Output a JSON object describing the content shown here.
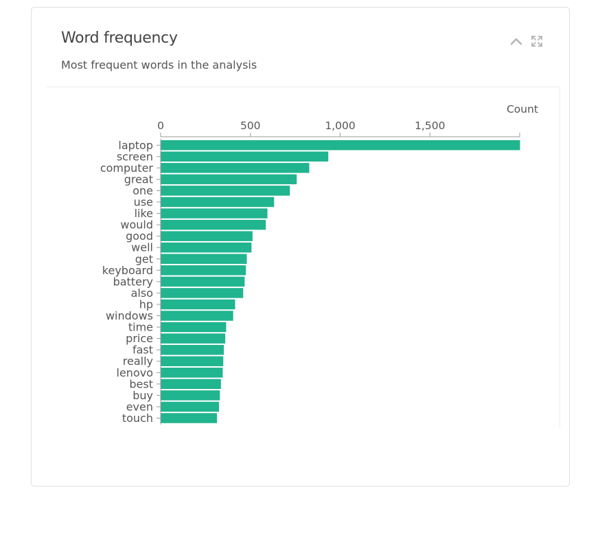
{
  "card": {
    "title": "Word frequency",
    "subtitle": "Most frequent words in the analysis"
  },
  "toolbar": {
    "collapse_icon": "chevron-up-icon",
    "expand_icon": "expand-icon"
  },
  "colors": {
    "bar": "#20b48f",
    "axis": "#999999",
    "text": "#555555"
  },
  "chart_data": {
    "type": "bar",
    "orientation": "horizontal",
    "title": "",
    "xlabel": "Count",
    "ylabel": "",
    "xlim": [
      0,
      2000
    ],
    "xticks": [
      0,
      500,
      1000,
      1500
    ],
    "xtick_labels": [
      "0",
      "500",
      "1,000",
      "1,500"
    ],
    "grid": false,
    "categories": [
      "laptop",
      "screen",
      "computer",
      "great",
      "one",
      "use",
      "like",
      "would",
      "good",
      "well",
      "get",
      "keyboard",
      "battery",
      "also",
      "hp",
      "windows",
      "time",
      "price",
      "fast",
      "really",
      "lenovo",
      "best",
      "buy",
      "even",
      "touch"
    ],
    "values": [
      2000,
      932,
      826,
      756,
      718,
      630,
      593,
      584,
      510,
      504,
      478,
      473,
      466,
      458,
      413,
      402,
      363,
      358,
      350,
      347,
      344,
      334,
      328,
      323,
      312
    ]
  }
}
